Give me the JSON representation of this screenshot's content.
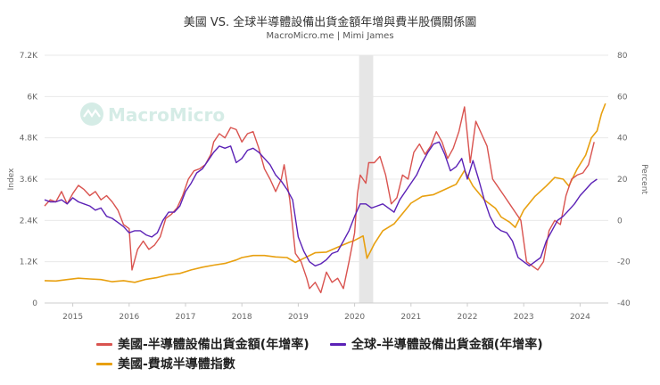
{
  "colors": {
    "us_billings": "#d9534f",
    "global_billings": "#5b21b6",
    "sox": "#e8a010",
    "recession": "#e6e6e6",
    "grid": "#e9e9e9"
  },
  "watermark_icon": "macromicro-logo-icon",
  "chart_data": {
    "type": "line",
    "title": "美國 VS. 全球半導體設備出貨金額年增與費半股價關係圖",
    "subtitle": "MacroMicro.me | Mimi James",
    "watermark": "MacroMicro",
    "left_axis": {
      "label": "Index",
      "min": 0,
      "max": 7200,
      "ticks": [
        0,
        1200,
        2400,
        3600,
        4800,
        6000,
        7200
      ],
      "tick_labels": [
        "0",
        "1.2K",
        "2.4K",
        "3.6K",
        "4.8K",
        "6K",
        "7.2K"
      ]
    },
    "right_axis": {
      "label": "Percent",
      "min": -40,
      "max": 80,
      "ticks": [
        -40,
        -20,
        0,
        20,
        40,
        60,
        80
      ],
      "tick_labels": [
        "-40",
        "-20",
        "0",
        "20",
        "40",
        "60",
        "80"
      ]
    },
    "x_axis": {
      "min": 2014.5,
      "max": 2024.5,
      "ticks": [
        2015,
        2016,
        2017,
        2018,
        2019,
        2020,
        2021,
        2022,
        2023,
        2024
      ],
      "tick_labels": [
        "2015",
        "2016",
        "2017",
        "2018",
        "2019",
        "2020",
        "2021",
        "2022",
        "2023",
        "2024"
      ]
    },
    "recession_band": {
      "start": 2020.08,
      "end": 2020.33
    },
    "series": [
      {
        "name": "美國-半導體設備出貨金額(年增率)",
        "axis": "right",
        "color_key": "us_billings",
        "points": [
          [
            2014.5,
            7
          ],
          [
            2014.6,
            10
          ],
          [
            2014.7,
            9
          ],
          [
            2014.8,
            14
          ],
          [
            2014.9,
            8
          ],
          [
            2015.0,
            13
          ],
          [
            2015.1,
            17
          ],
          [
            2015.2,
            15
          ],
          [
            2015.3,
            12
          ],
          [
            2015.4,
            14
          ],
          [
            2015.5,
            10
          ],
          [
            2015.6,
            12
          ],
          [
            2015.7,
            9
          ],
          [
            2015.8,
            5
          ],
          [
            2015.9,
            -2
          ],
          [
            2016.0,
            -4
          ],
          [
            2016.05,
            -24
          ],
          [
            2016.15,
            -14
          ],
          [
            2016.25,
            -10
          ],
          [
            2016.35,
            -14
          ],
          [
            2016.45,
            -12
          ],
          [
            2016.55,
            -8
          ],
          [
            2016.65,
            1
          ],
          [
            2016.75,
            3
          ],
          [
            2016.85,
            6
          ],
          [
            2016.95,
            12
          ],
          [
            2017.05,
            20
          ],
          [
            2017.15,
            24
          ],
          [
            2017.25,
            25
          ],
          [
            2017.35,
            27
          ],
          [
            2017.45,
            32
          ],
          [
            2017.5,
            38
          ],
          [
            2017.6,
            42
          ],
          [
            2017.7,
            40
          ],
          [
            2017.8,
            45
          ],
          [
            2017.9,
            44
          ],
          [
            2018.0,
            38
          ],
          [
            2018.1,
            42
          ],
          [
            2018.2,
            43
          ],
          [
            2018.3,
            35
          ],
          [
            2018.4,
            25
          ],
          [
            2018.5,
            20
          ],
          [
            2018.6,
            14
          ],
          [
            2018.7,
            20
          ],
          [
            2018.75,
            27
          ],
          [
            2018.85,
            10
          ],
          [
            2018.95,
            -16
          ],
          [
            2019.05,
            -20
          ],
          [
            2019.15,
            -28
          ],
          [
            2019.2,
            -33
          ],
          [
            2019.3,
            -30
          ],
          [
            2019.4,
            -35
          ],
          [
            2019.5,
            -25
          ],
          [
            2019.6,
            -30
          ],
          [
            2019.7,
            -28
          ],
          [
            2019.8,
            -33
          ],
          [
            2019.9,
            -20
          ],
          [
            2020.0,
            -6
          ],
          [
            2020.05,
            13
          ],
          [
            2020.1,
            22
          ],
          [
            2020.2,
            18
          ],
          [
            2020.25,
            28
          ],
          [
            2020.35,
            28
          ],
          [
            2020.45,
            31
          ],
          [
            2020.55,
            22
          ],
          [
            2020.65,
            8
          ],
          [
            2020.75,
            11
          ],
          [
            2020.85,
            22
          ],
          [
            2020.95,
            20
          ],
          [
            2021.05,
            33
          ],
          [
            2021.15,
            37
          ],
          [
            2021.25,
            32
          ],
          [
            2021.35,
            36
          ],
          [
            2021.45,
            43
          ],
          [
            2021.55,
            38
          ],
          [
            2021.65,
            30
          ],
          [
            2021.75,
            35
          ],
          [
            2021.85,
            43
          ],
          [
            2021.95,
            55
          ],
          [
            2022.05,
            28
          ],
          [
            2022.15,
            48
          ],
          [
            2022.25,
            42
          ],
          [
            2022.35,
            36
          ],
          [
            2022.45,
            20
          ],
          [
            2022.55,
            16
          ],
          [
            2022.65,
            12
          ],
          [
            2022.75,
            8
          ],
          [
            2022.85,
            4
          ],
          [
            2022.95,
            0
          ],
          [
            2023.05,
            -20
          ],
          [
            2023.15,
            -22
          ],
          [
            2023.25,
            -24
          ],
          [
            2023.35,
            -20
          ],
          [
            2023.45,
            -5
          ],
          [
            2023.55,
            0
          ],
          [
            2023.65,
            -2
          ],
          [
            2023.75,
            12
          ],
          [
            2023.85,
            20
          ],
          [
            2023.95,
            22
          ],
          [
            2024.05,
            23
          ],
          [
            2024.15,
            27
          ],
          [
            2024.25,
            38
          ]
        ]
      },
      {
        "name": "全球-半導體設備出貨金額(年增率)",
        "axis": "right",
        "color_key": "global_billings",
        "points": [
          [
            2014.5,
            10
          ],
          [
            2014.6,
            9
          ],
          [
            2014.7,
            9
          ],
          [
            2014.8,
            10
          ],
          [
            2014.9,
            8
          ],
          [
            2015.0,
            11
          ],
          [
            2015.1,
            9
          ],
          [
            2015.2,
            8
          ],
          [
            2015.3,
            7
          ],
          [
            2015.4,
            5
          ],
          [
            2015.5,
            6
          ],
          [
            2015.6,
            2
          ],
          [
            2015.7,
            1
          ],
          [
            2015.8,
            -1
          ],
          [
            2015.9,
            -3
          ],
          [
            2016.0,
            -6
          ],
          [
            2016.1,
            -5
          ],
          [
            2016.2,
            -5
          ],
          [
            2016.3,
            -7
          ],
          [
            2016.4,
            -8
          ],
          [
            2016.5,
            -6
          ],
          [
            2016.6,
            0
          ],
          [
            2016.7,
            4
          ],
          [
            2016.8,
            4
          ],
          [
            2016.9,
            7
          ],
          [
            2017.0,
            14
          ],
          [
            2017.1,
            18
          ],
          [
            2017.2,
            23
          ],
          [
            2017.3,
            25
          ],
          [
            2017.4,
            29
          ],
          [
            2017.5,
            33
          ],
          [
            2017.6,
            36
          ],
          [
            2017.7,
            35
          ],
          [
            2017.8,
            36
          ],
          [
            2017.9,
            28
          ],
          [
            2018.0,
            30
          ],
          [
            2018.1,
            34
          ],
          [
            2018.2,
            35
          ],
          [
            2018.3,
            33
          ],
          [
            2018.4,
            30
          ],
          [
            2018.5,
            27
          ],
          [
            2018.6,
            22
          ],
          [
            2018.7,
            19
          ],
          [
            2018.8,
            15
          ],
          [
            2018.9,
            10
          ],
          [
            2019.0,
            -8
          ],
          [
            2019.1,
            -15
          ],
          [
            2019.2,
            -20
          ],
          [
            2019.3,
            -22
          ],
          [
            2019.4,
            -21
          ],
          [
            2019.5,
            -19
          ],
          [
            2019.6,
            -16
          ],
          [
            2019.7,
            -15
          ],
          [
            2019.8,
            -10
          ],
          [
            2019.9,
            -5
          ],
          [
            2020.0,
            2
          ],
          [
            2020.1,
            8
          ],
          [
            2020.2,
            8
          ],
          [
            2020.3,
            6
          ],
          [
            2020.4,
            7
          ],
          [
            2020.5,
            8
          ],
          [
            2020.6,
            6
          ],
          [
            2020.7,
            4
          ],
          [
            2020.8,
            10
          ],
          [
            2020.9,
            14
          ],
          [
            2021.0,
            18
          ],
          [
            2021.1,
            22
          ],
          [
            2021.2,
            28
          ],
          [
            2021.3,
            33
          ],
          [
            2021.4,
            37
          ],
          [
            2021.5,
            38
          ],
          [
            2021.6,
            32
          ],
          [
            2021.7,
            24
          ],
          [
            2021.8,
            26
          ],
          [
            2021.9,
            30
          ],
          [
            2022.0,
            20
          ],
          [
            2022.1,
            29
          ],
          [
            2022.2,
            20
          ],
          [
            2022.3,
            10
          ],
          [
            2022.4,
            2
          ],
          [
            2022.5,
            -3
          ],
          [
            2022.6,
            -5
          ],
          [
            2022.7,
            -6
          ],
          [
            2022.8,
            -10
          ],
          [
            2022.9,
            -18
          ],
          [
            2023.0,
            -20
          ],
          [
            2023.1,
            -22
          ],
          [
            2023.2,
            -20
          ],
          [
            2023.3,
            -18
          ],
          [
            2023.4,
            -10
          ],
          [
            2023.5,
            -5
          ],
          [
            2023.6,
            0
          ],
          [
            2023.7,
            2
          ],
          [
            2023.8,
            5
          ],
          [
            2023.9,
            8
          ],
          [
            2024.0,
            12
          ],
          [
            2024.1,
            15
          ],
          [
            2024.2,
            18
          ],
          [
            2024.3,
            20
          ]
        ]
      },
      {
        "name": "美國-費城半導體指數",
        "axis": "left",
        "color_key": "sox",
        "points": [
          [
            2014.5,
            650
          ],
          [
            2014.7,
            640
          ],
          [
            2014.9,
            680
          ],
          [
            2015.1,
            720
          ],
          [
            2015.3,
            700
          ],
          [
            2015.5,
            680
          ],
          [
            2015.7,
            620
          ],
          [
            2015.9,
            650
          ],
          [
            2016.1,
            600
          ],
          [
            2016.3,
            690
          ],
          [
            2016.5,
            740
          ],
          [
            2016.7,
            820
          ],
          [
            2016.9,
            860
          ],
          [
            2017.1,
            960
          ],
          [
            2017.3,
            1040
          ],
          [
            2017.5,
            1100
          ],
          [
            2017.7,
            1150
          ],
          [
            2017.9,
            1250
          ],
          [
            2018.0,
            1320
          ],
          [
            2018.2,
            1380
          ],
          [
            2018.4,
            1380
          ],
          [
            2018.6,
            1340
          ],
          [
            2018.8,
            1320
          ],
          [
            2018.95,
            1180
          ],
          [
            2019.1,
            1300
          ],
          [
            2019.3,
            1460
          ],
          [
            2019.5,
            1480
          ],
          [
            2019.7,
            1620
          ],
          [
            2019.9,
            1760
          ],
          [
            2020.0,
            1820
          ],
          [
            2020.15,
            1950
          ],
          [
            2020.22,
            1300
          ],
          [
            2020.35,
            1720
          ],
          [
            2020.5,
            2100
          ],
          [
            2020.7,
            2300
          ],
          [
            2020.9,
            2700
          ],
          [
            2021.0,
            2900
          ],
          [
            2021.2,
            3100
          ],
          [
            2021.4,
            3150
          ],
          [
            2021.6,
            3300
          ],
          [
            2021.8,
            3450
          ],
          [
            2021.95,
            3850
          ],
          [
            2022.1,
            3400
          ],
          [
            2022.3,
            3000
          ],
          [
            2022.5,
            2750
          ],
          [
            2022.6,
            2500
          ],
          [
            2022.75,
            2350
          ],
          [
            2022.85,
            2200
          ],
          [
            2023.0,
            2700
          ],
          [
            2023.2,
            3100
          ],
          [
            2023.4,
            3400
          ],
          [
            2023.55,
            3650
          ],
          [
            2023.7,
            3600
          ],
          [
            2023.8,
            3400
          ],
          [
            2023.95,
            3900
          ],
          [
            2024.1,
            4300
          ],
          [
            2024.2,
            4800
          ],
          [
            2024.3,
            5000
          ],
          [
            2024.38,
            5500
          ],
          [
            2024.45,
            5800
          ]
        ]
      }
    ]
  }
}
